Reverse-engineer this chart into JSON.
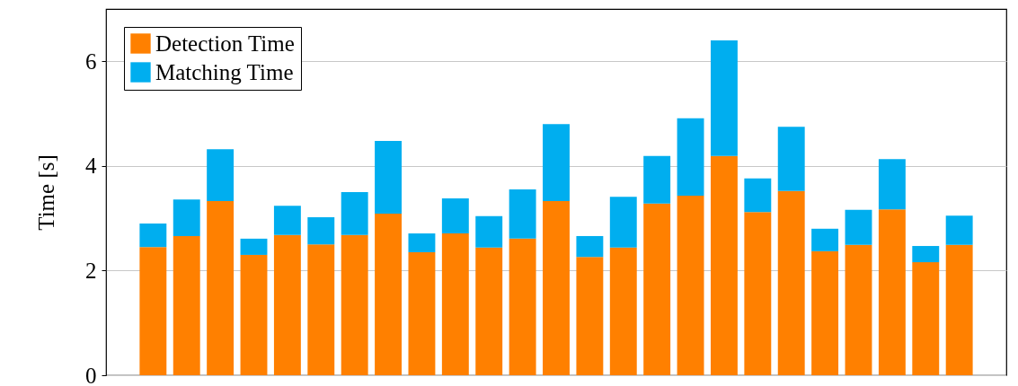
{
  "chart_data": {
    "type": "bar",
    "ylabel": "Time [s]",
    "stacked": true,
    "grid": "y",
    "legend": "top left",
    "categories": [
      null,
      null,
      null,
      null,
      null,
      null,
      null,
      null,
      null,
      null,
      null,
      null,
      null,
      null,
      null,
      null,
      null,
      null,
      null,
      null,
      null,
      null,
      null,
      null,
      null
    ],
    "ylim": [
      0,
      7
    ],
    "yticks": [
      0,
      2,
      4,
      6
    ],
    "series": [
      {
        "name": "Detection Time",
        "color": "#ff8000",
        "values": [
          2.45,
          2.66,
          3.33,
          2.3,
          2.68,
          2.5,
          2.68,
          3.09,
          2.35,
          2.71,
          2.44,
          2.61,
          3.33,
          2.26,
          2.44,
          3.28,
          3.43,
          4.19,
          3.12,
          3.52,
          2.37,
          2.49,
          3.17,
          2.16,
          2.49
        ]
      },
      {
        "name": "Matching Time",
        "color": "#00aeef",
        "values": [
          0.45,
          0.7,
          0.99,
          0.31,
          0.56,
          0.52,
          0.82,
          1.39,
          0.36,
          0.67,
          0.6,
          0.94,
          1.47,
          0.4,
          0.97,
          0.91,
          1.48,
          2.21,
          0.64,
          1.23,
          0.43,
          0.67,
          0.96,
          0.31,
          0.56
        ]
      }
    ]
  }
}
